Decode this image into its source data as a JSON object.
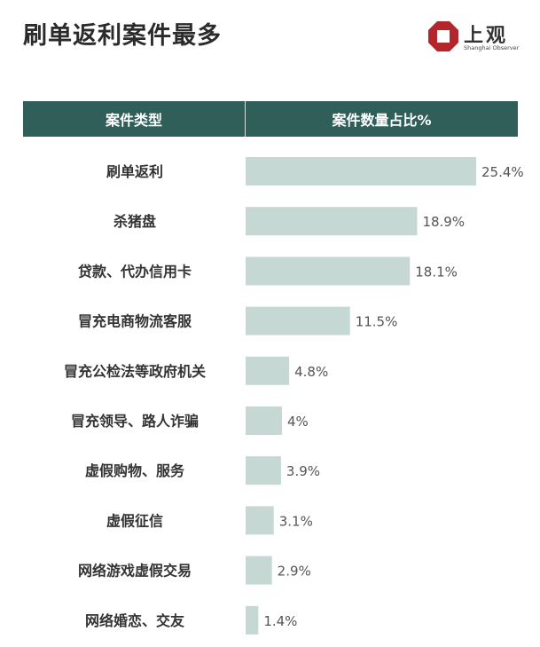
{
  "title": "刷单返利案件最多",
  "logo": {
    "cn": "上观",
    "en": "Shanghai Observer"
  },
  "table_header": {
    "col1": "案件类型",
    "col2": "案件数量占比%"
  },
  "colors": {
    "header_bg": "#2f5f58",
    "bar": "#c5d8d4",
    "logo_red": "#b3262c"
  },
  "chart_data": {
    "type": "bar",
    "orientation": "horizontal",
    "categories": [
      "刷单返利",
      "杀猪盘",
      "贷款、代办信用卡",
      "冒充电商物流客服",
      "冒充公检法等政府机关",
      "冒充领导、路人诈骗",
      "虚假购物、服务",
      "虚假征信",
      "网络游戏虚假交易",
      "网络婚恋、交友"
    ],
    "values": [
      25.4,
      18.9,
      18.1,
      11.5,
      4.8,
      4,
      3.9,
      3.1,
      2.9,
      1.4
    ],
    "labels": [
      "25.4%",
      "18.9%",
      "18.1%",
      "11.5%",
      "4.8%",
      "4%",
      "3.9%",
      "3.1%",
      "2.9%",
      "1.4%"
    ],
    "xlim": [
      0,
      25.4
    ],
    "title": "刷单返利案件最多",
    "xlabel": "案件数量占比%",
    "ylabel": "案件类型",
    "grid": false,
    "legend": "none"
  }
}
